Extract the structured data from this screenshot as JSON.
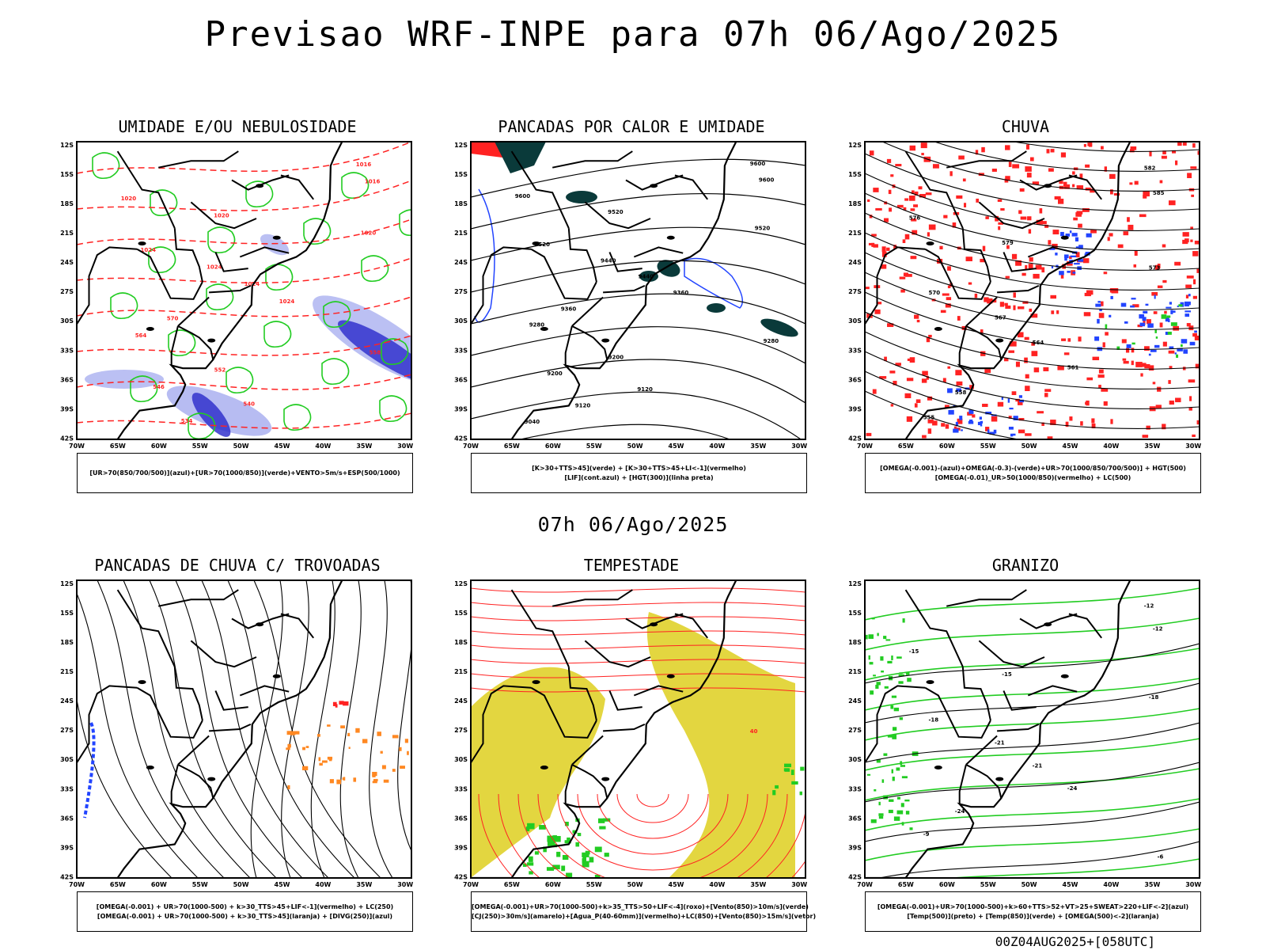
{
  "title": "Previsao WRF-INPE  para 07h 06/Ago/2025",
  "subtitle": "07h 06/Ago/2025",
  "footer": "00Z04AUG2025+[058UTC]",
  "lat_ticks": [
    "12S",
    "15S",
    "18S",
    "21S",
    "24S",
    "27S",
    "30S",
    "33S",
    "36S",
    "39S",
    "42S"
  ],
  "lon_ticks": [
    "70W",
    "65W",
    "60W",
    "55W",
    "50W",
    "45W",
    "40W",
    "35W",
    "30W"
  ],
  "panels": [
    {
      "title": "UMIDADE E/OU NEBULOSIDADE",
      "legend": [
        "[UR>70(850/700/500)](azul)+[UR>70(1000/850)](verde)+VENTO>5m/s+ESP(500/1000)"
      ],
      "labels": [
        "1016",
        "1016",
        "1020",
        "1020",
        "1020",
        "1024",
        "1024",
        "1024",
        "1024",
        "570",
        "564",
        "558",
        "552",
        "546",
        "540",
        "534"
      ]
    },
    {
      "title": "PANCADAS POR CALOR E UMIDADE",
      "legend": [
        "[K>30+TTS>45](verde) + [K>30+TTS>45+LI<-1](vermelho)",
        "[LIF](cont.azul) + [HGT(300)](linha preta)"
      ],
      "labels": [
        "9600",
        "9600",
        "9600",
        "9520",
        "9520",
        "9520",
        "9440",
        "9440",
        "9360",
        "9360",
        "9280",
        "9280",
        "9200",
        "9200",
        "9120",
        "9120",
        "9040"
      ]
    },
    {
      "title": "CHUVA",
      "legend": [
        "[OMEGA(-0.001)-(azul)+OMEGA(-0.3)-(verde)+UR>70(1000/850/700/500)] + HGT(500)",
        "[OMEGA(-0.01)_UR>50(1000/850)(vermelho) + LC(500)"
      ],
      "labels": [
        "582",
        "585",
        "576",
        "579",
        "573",
        "570",
        "567",
        "564",
        "561",
        "558",
        "555"
      ]
    },
    {
      "title": "PANCADAS DE CHUVA C/ TROVOADAS",
      "legend": [
        "[OMEGA(-0.001) + UR>70(1000-500) + k>30_TTS>45+LIF<-1](vermelho) + LC(250)",
        "[OMEGA(-0.001) + UR>70(1000-500) + k>30_TTS>45](laranja) + [DIVG(250)](azul)"
      ],
      "labels": []
    },
    {
      "title": "TEMPESTADE",
      "legend": [
        "[OMEGA(-0.001)+UR>70(1000-500)+k>35_TTS>50+LIF<-4](roxo)+[Vento(850)>10m/s](verde)",
        "[CJ(250)>30m/s](amarelo)+[Agua_P(40-60mm)](vermelho)+LC(850)+[Vento(850)>15m/s](vetor)"
      ],
      "labels": [
        "40"
      ]
    },
    {
      "title": "GRANIZO",
      "legend": [
        "[OMEGA(-0.001)+UR>70(1000-500)+k>60+TTS>52+VT>25+SWEAT>220+LIF<-2](azul)",
        "[Temp(500)](preto) + [Temp(850)](verde) + [OMEGA(500)<-2](laranja)"
      ],
      "labels": [
        "-12",
        "-12",
        "-15",
        "-15",
        "-18",
        "-18",
        "-21",
        "-21",
        "-24",
        "-24",
        "-9",
        "-6"
      ]
    }
  ],
  "colors": {
    "blue": "#2244ff",
    "green": "#22cc22",
    "red": "#ff2222",
    "lightblue": "#aab0f0",
    "navy": "#3333cc",
    "darkteal": "#0a3a3a",
    "yellow": "#e3d640",
    "orange": "#ff8822",
    "black": "#000000"
  }
}
